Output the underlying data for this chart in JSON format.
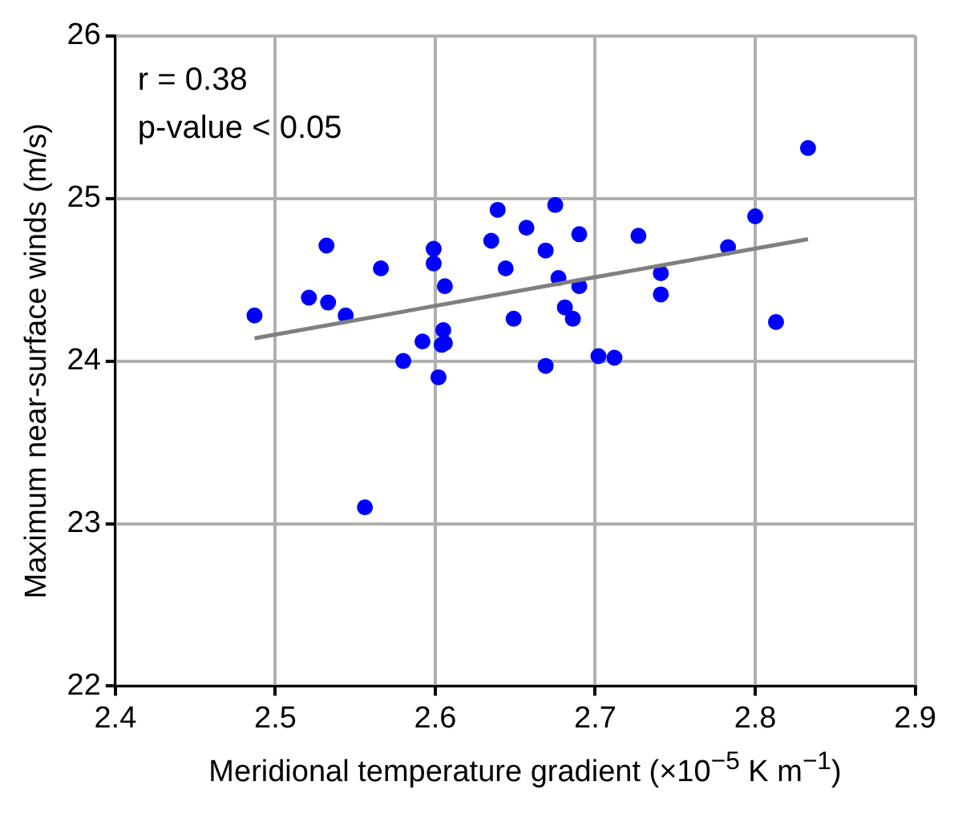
{
  "chart_data": {
    "type": "scatter",
    "xlabel": "Meridional temperature gradient (×10$^{−5}$ K m$^{−1}$)",
    "ylabel": "Maximum near-surface winds (m/s)",
    "annotations": [
      "r = 0.38",
      "p-value < 0.05"
    ],
    "xlim": [
      2.4,
      2.9
    ],
    "xticks": [
      2.4,
      2.5,
      2.6,
      2.7,
      2.8,
      2.9
    ],
    "ylim": [
      22,
      26
    ],
    "yticks": [
      22,
      23,
      24,
      25,
      26
    ],
    "grid": true,
    "series": [
      {
        "marker": "circle",
        "color": "#0000ff",
        "x": [
          2.487,
          2.521,
          2.532,
          2.533,
          2.544,
          2.566,
          2.556,
          2.58,
          2.592,
          2.599,
          2.599,
          2.606,
          2.605,
          2.604,
          2.606,
          2.602,
          2.639,
          2.635,
          2.657,
          2.644,
          2.649,
          2.669,
          2.669,
          2.675,
          2.677,
          2.681,
          2.686,
          2.69,
          2.69,
          2.702,
          2.712,
          2.727,
          2.741,
          2.741,
          2.783,
          2.8,
          2.813,
          2.833
        ],
        "values": [
          24.28,
          24.39,
          24.71,
          24.36,
          24.28,
          24.57,
          23.1,
          24.0,
          24.12,
          24.69,
          24.6,
          24.46,
          24.19,
          24.1,
          24.11,
          23.9,
          24.93,
          24.74,
          24.82,
          24.57,
          24.26,
          24.68,
          23.97,
          24.96,
          24.51,
          24.33,
          24.26,
          24.78,
          24.46,
          24.03,
          24.02,
          24.77,
          24.54,
          24.41,
          24.7,
          24.89,
          24.24,
          25.31
        ]
      },
      {
        "type": "line",
        "marker": "none",
        "color": "#808080",
        "x": [
          2.487,
          2.833
        ],
        "values": [
          24.14,
          24.75
        ]
      }
    ]
  }
}
